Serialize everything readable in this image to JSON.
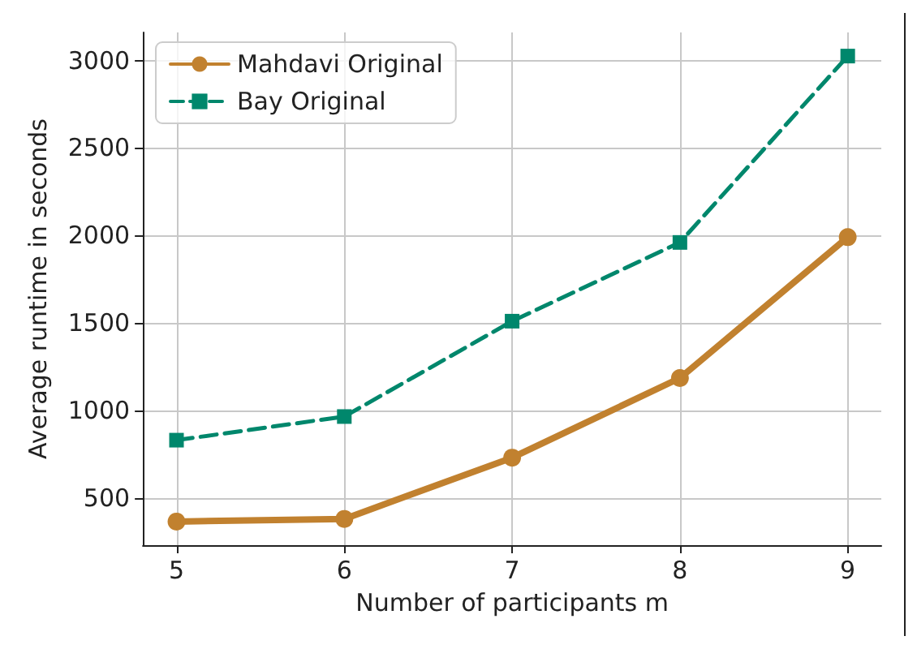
{
  "chart_data": {
    "type": "line",
    "xlabel": "Number of participants m",
    "ylabel": "Average runtime in seconds",
    "x": [
      5,
      6,
      7,
      8,
      9
    ],
    "series": [
      {
        "name": "Mahdavi Original",
        "color": "#c1812f",
        "marker": "circle",
        "line_style": "solid",
        "values": [
          365,
          380,
          730,
          1185,
          1990
        ]
      },
      {
        "name": "Bay Original",
        "color": "#00876c",
        "marker": "square",
        "line_style": "dashed",
        "values": [
          830,
          965,
          1510,
          1960,
          3025
        ]
      }
    ],
    "xlim": [
      4.8,
      9.2
    ],
    "xticks": [
      5,
      6,
      7,
      8,
      9
    ],
    "ylim": [
      230,
      3160
    ],
    "yticks": [
      500,
      1000,
      1500,
      2000,
      2500,
      3000
    ],
    "grid": true,
    "legend": "top left"
  }
}
